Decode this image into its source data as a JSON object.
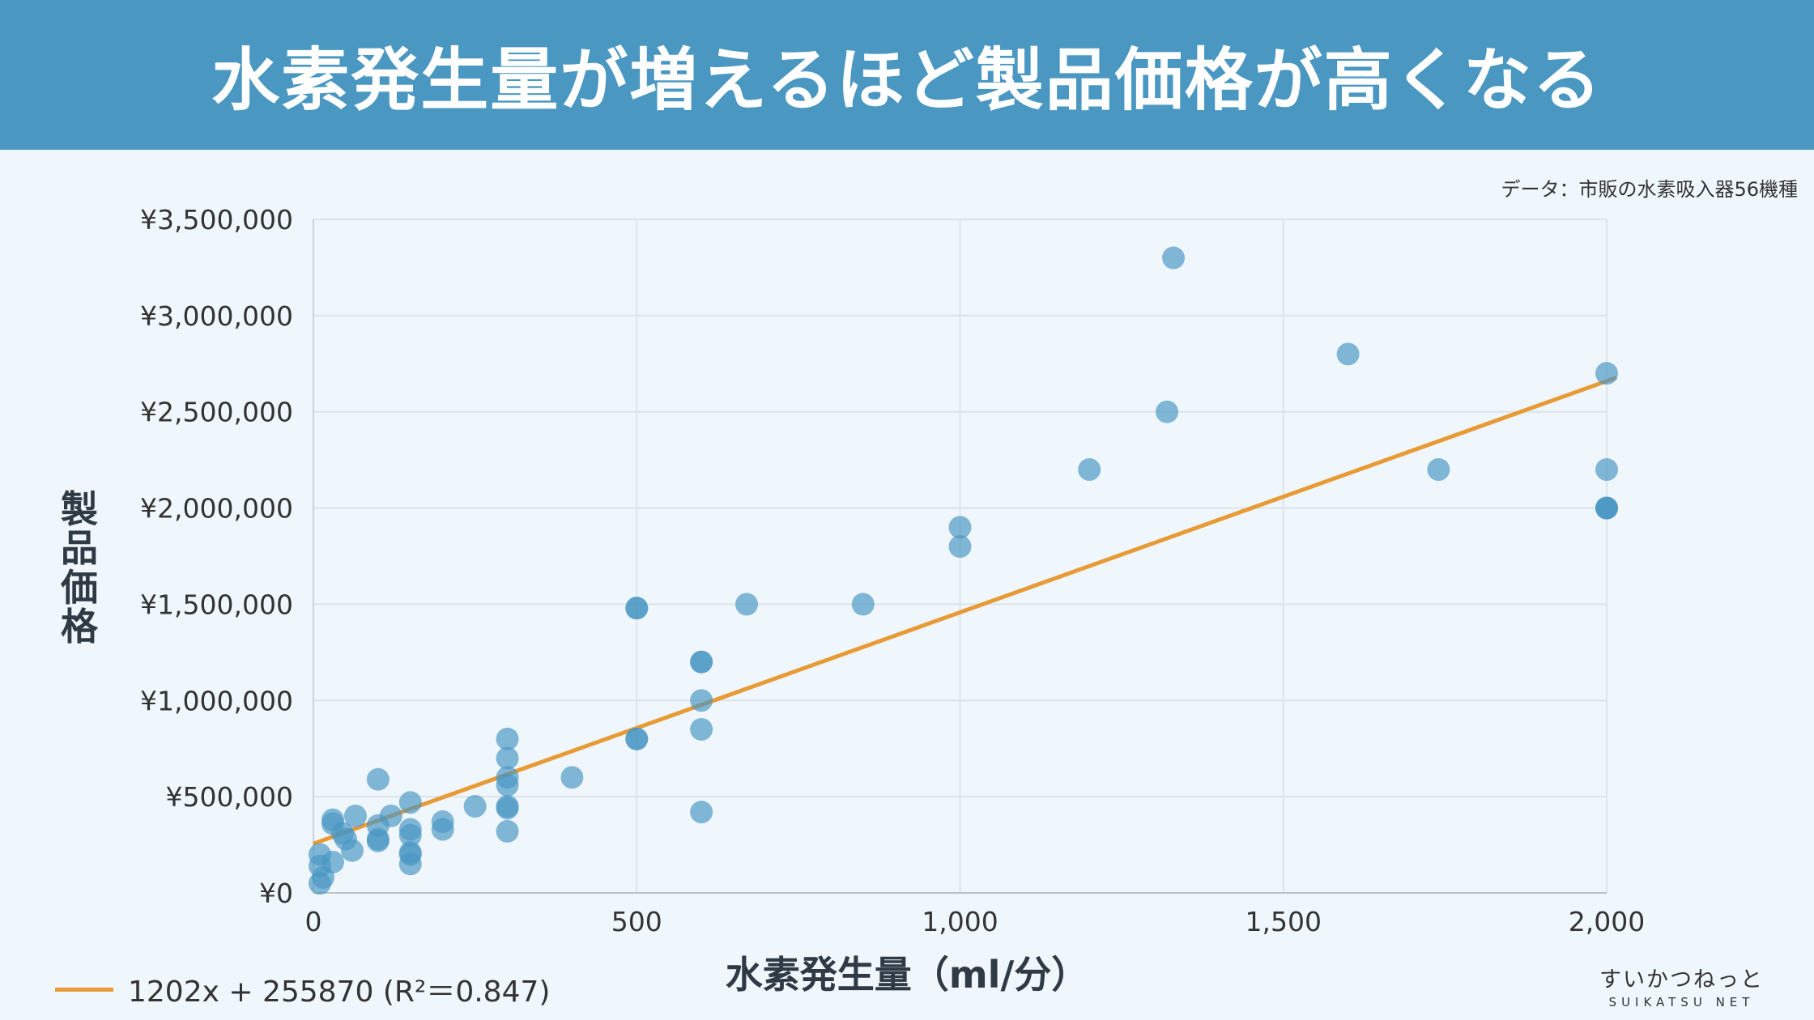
{
  "title": "水素発生量が増えるほど製品価格が高くなる",
  "source_note": "データ：市販の水素吸入器56機種",
  "logo": {
    "jp": "すいかつねっと",
    "en": "SUIKATSU NET"
  },
  "colors": {
    "banner": "#4A97C2",
    "point": "#4A97C2",
    "trend": "#E89A35",
    "grid": "#DCE4EA"
  },
  "chart_data": {
    "type": "scatter",
    "xlabel": "水素発生量（ml/分）",
    "ylabel": "製品価格",
    "xlim": [
      0,
      2000
    ],
    "ylim": [
      0,
      3500000
    ],
    "xticks": [
      0,
      500,
      1000,
      1500,
      2000
    ],
    "xtick_labels": [
      "0",
      "500",
      "1,000",
      "1,500",
      "2,000"
    ],
    "yticks": [
      0,
      500000,
      1000000,
      1500000,
      2000000,
      2500000,
      3000000,
      3500000
    ],
    "ytick_labels": [
      "¥0",
      "¥500,000",
      "¥1,000,000",
      "¥1,500,000",
      "¥2,000,000",
      "¥2,500,000",
      "¥3,000,000",
      "¥3,500,000"
    ],
    "grid": true,
    "points": [
      [
        10,
        50000
      ],
      [
        15,
        80000
      ],
      [
        10,
        140000
      ],
      [
        10,
        200000
      ],
      [
        30,
        160000
      ],
      [
        30,
        360000
      ],
      [
        30,
        380000
      ],
      [
        45,
        310000
      ],
      [
        50,
        280000
      ],
      [
        60,
        220000
      ],
      [
        65,
        400000
      ],
      [
        100,
        270000
      ],
      [
        100,
        280000
      ],
      [
        100,
        350000
      ],
      [
        100,
        590000
      ],
      [
        120,
        400000
      ],
      [
        150,
        150000
      ],
      [
        150,
        200000
      ],
      [
        150,
        210000
      ],
      [
        150,
        300000
      ],
      [
        150,
        330000
      ],
      [
        150,
        470000
      ],
      [
        200,
        330000
      ],
      [
        200,
        370000
      ],
      [
        250,
        450000
      ],
      [
        300,
        320000
      ],
      [
        300,
        440000
      ],
      [
        300,
        450000
      ],
      [
        300,
        560000
      ],
      [
        300,
        600000
      ],
      [
        300,
        700000
      ],
      [
        300,
        800000
      ],
      [
        400,
        600000
      ],
      [
        500,
        800000
      ],
      [
        500,
        800000
      ],
      [
        500,
        1480000
      ],
      [
        500,
        1480000
      ],
      [
        600,
        420000
      ],
      [
        600,
        850000
      ],
      [
        600,
        1000000
      ],
      [
        600,
        1200000
      ],
      [
        600,
        1200000
      ],
      [
        670,
        1500000
      ],
      [
        850,
        1500000
      ],
      [
        1000,
        1800000
      ],
      [
        1000,
        1900000
      ],
      [
        1200,
        2200000
      ],
      [
        1320,
        2500000
      ],
      [
        1330,
        3300000
      ],
      [
        1600,
        2800000
      ],
      [
        1740,
        2200000
      ],
      [
        2000,
        2000000
      ],
      [
        2000,
        2000000
      ],
      [
        2000,
        2200000
      ],
      [
        2000,
        2700000
      ],
      [
        2000,
        2000000
      ]
    ],
    "trendline": {
      "slope": 1202,
      "intercept": 255870,
      "r2": 0.847,
      "label": "1202x + 255870 (R²＝0.847)"
    }
  }
}
